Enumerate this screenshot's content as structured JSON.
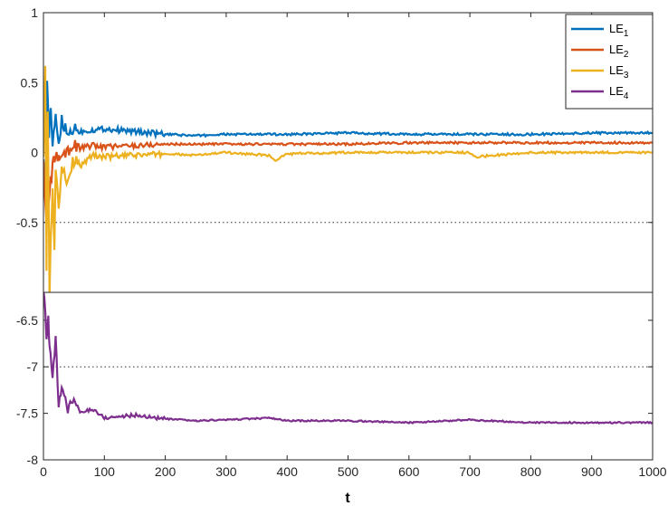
{
  "chart_data": {
    "type": "line",
    "xlabel": "t",
    "xlim": [
      0,
      1000
    ],
    "x_ticks": [
      "0",
      "100",
      "200",
      "300",
      "400",
      "500",
      "600",
      "700",
      "800",
      "900",
      "1000"
    ],
    "upper_panel": {
      "ylim": [
        -1,
        1
      ],
      "y_ticks": [
        "1",
        "0.5",
        "0",
        "-0.5"
      ],
      "reference_line": -0.5
    },
    "lower_panel": {
      "ylim": [
        -8,
        -6.2
      ],
      "y_ticks": [
        "-6.5",
        "-7",
        "-7.5",
        "-8"
      ],
      "reference_line": -7
    },
    "legend": {
      "position": "top-right",
      "entries": [
        "LE1",
        "LE2",
        "LE3",
        "LE4"
      ]
    },
    "series": [
      {
        "name": "LE1",
        "panel": "upper",
        "color": "#0072BD",
        "x": [
          0,
          3,
          6,
          9,
          12,
          15,
          20,
          25,
          30,
          40,
          50,
          60,
          80,
          100,
          150,
          200,
          250,
          300,
          400,
          500,
          600,
          700,
          800,
          900,
          1000
        ],
        "y": [
          0.0,
          -0.3,
          0.5,
          0.1,
          0.35,
          0.05,
          0.25,
          0.08,
          0.22,
          0.12,
          0.18,
          0.15,
          0.16,
          0.17,
          0.15,
          0.13,
          0.12,
          0.13,
          0.13,
          0.14,
          0.13,
          0.13,
          0.13,
          0.14,
          0.14
        ]
      },
      {
        "name": "LE2",
        "panel": "upper",
        "color": "#D95319",
        "x": [
          0,
          5,
          10,
          15,
          20,
          25,
          30,
          40,
          50,
          60,
          80,
          100,
          150,
          200,
          250,
          300,
          400,
          500,
          600,
          700,
          800,
          900,
          1000
        ],
        "y": [
          -0.1,
          -0.5,
          -0.3,
          -0.1,
          0.0,
          -0.05,
          0.0,
          0.02,
          0.05,
          0.03,
          0.05,
          0.04,
          0.05,
          0.06,
          0.06,
          0.06,
          0.06,
          0.06,
          0.07,
          0.07,
          0.07,
          0.07,
          0.07
        ]
      },
      {
        "name": "LE3",
        "panel": "upper",
        "color": "#EDB120",
        "x": [
          0,
          3,
          5,
          7,
          10,
          12,
          15,
          18,
          20,
          25,
          30,
          40,
          50,
          60,
          80,
          100,
          150,
          200,
          250,
          300,
          370,
          380,
          400,
          500,
          600,
          700,
          710,
          800,
          900,
          1000
        ],
        "y": [
          0.0,
          0.6,
          -0.8,
          0.3,
          -1.0,
          -0.6,
          -0.3,
          -0.7,
          -0.15,
          -0.4,
          -0.1,
          -0.2,
          -0.05,
          -0.1,
          -0.02,
          -0.03,
          -0.02,
          -0.01,
          -0.02,
          0.0,
          -0.02,
          -0.06,
          -0.01,
          0.0,
          0.0,
          0.0,
          -0.03,
          0.0,
          0.0,
          0.0
        ]
      },
      {
        "name": "LE4",
        "panel": "lower",
        "color": "#7E2F8E",
        "x": [
          0,
          3,
          5,
          8,
          10,
          15,
          20,
          25,
          30,
          40,
          50,
          60,
          80,
          100,
          150,
          200,
          250,
          300,
          370,
          400,
          500,
          600,
          700,
          800,
          900,
          1000
        ],
        "y": [
          -6.2,
          -6.4,
          -6.7,
          -6.5,
          -6.8,
          -7.1,
          -6.7,
          -7.4,
          -7.25,
          -7.45,
          -7.35,
          -7.5,
          -7.45,
          -7.55,
          -7.52,
          -7.56,
          -7.58,
          -7.57,
          -7.55,
          -7.58,
          -7.58,
          -7.6,
          -7.57,
          -7.6,
          -7.6,
          -7.6
        ]
      }
    ]
  }
}
